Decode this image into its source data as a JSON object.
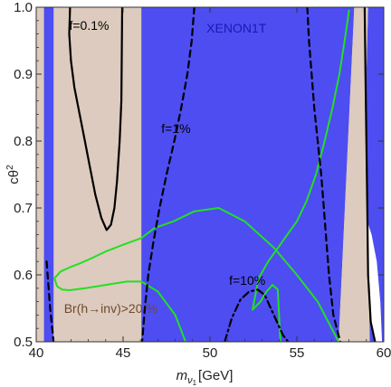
{
  "chart_data": {
    "type": "contour",
    "xlabel_main": "m",
    "xlabel_sub": "ν",
    "xlabel_subsub": "1",
    "xlabel_unit": "[GeV]",
    "ylabel_main": "cθ",
    "ylabel_sup": "2",
    "xlim": [
      40,
      60
    ],
    "ylim": [
      0.5,
      1.0
    ],
    "x_ticks": [
      40,
      45,
      50,
      55,
      60
    ],
    "x_tick_labels": [
      "40",
      "45",
      "50",
      "55",
      "60"
    ],
    "y_ticks": [
      0.5,
      0.6,
      0.7,
      0.8,
      0.9,
      1.0
    ],
    "y_tick_labels": [
      "0.5",
      "0.6",
      "0.7",
      "0.8",
      "0.9",
      "1.0"
    ],
    "colors": {
      "xenon": "#4d4df2",
      "br_region": "#dccbbe",
      "green": "#22e022",
      "contour": "#000000",
      "xenon_text": "#1a1ab3",
      "br_text": "#6e4a2e"
    },
    "annotations": [
      {
        "text": "f=0.1%",
        "x": 41.9,
        "y": 0.966,
        "color": "#000000"
      },
      {
        "text": "f=1%",
        "x": 47.2,
        "y": 0.812,
        "color": "#000000"
      },
      {
        "text": "f=10%",
        "x": 51.1,
        "y": 0.585,
        "color": "#000000"
      },
      {
        "text": "XENON1T",
        "x": 49.8,
        "y": 0.962,
        "color": "#1a1ab3"
      },
      {
        "text": "Br(h→inv)>20 %",
        "x": 41.6,
        "y": 0.543,
        "color": "#6e4a2e"
      }
    ],
    "regions": {
      "xenon": [
        [
          [
            40.45,
            0.5
          ],
          [
            40.45,
            1.0
          ],
          [
            41.0,
            1.0
          ],
          [
            41.0,
            0.5
          ]
        ],
        [
          [
            46.05,
            0.5
          ],
          [
            46.05,
            1.0
          ],
          [
            58.3,
            1.0
          ],
          [
            57.4,
            0.5
          ]
        ],
        [
          [
            59.1,
            1.0
          ],
          [
            60,
            1.0
          ],
          [
            60,
            0.5
          ],
          [
            59.2,
            0.5
          ],
          [
            59.05,
            0.7
          ],
          [
            59.0,
            0.9
          ]
        ]
      ],
      "br_region": [
        [
          [
            58.3,
            1.0
          ],
          [
            59.1,
            1.0
          ],
          [
            59.0,
            0.9
          ],
          [
            59.05,
            0.7
          ],
          [
            59.2,
            0.5
          ],
          [
            57.4,
            0.5
          ]
        ]
      ]
    },
    "series": [
      {
        "style": "solid",
        "color": "green",
        "x": [
          58.0,
          57.75,
          57.45,
          57.05,
          56.6,
          56.1,
          55.55,
          55.0,
          54.45,
          53.9,
          53.35,
          52.8,
          52.45,
          52.9,
          53.25,
          53.6,
          53.9,
          54.05
        ],
        "y": [
          0.995,
          0.95,
          0.9,
          0.85,
          0.8,
          0.75,
          0.71,
          0.68,
          0.66,
          0.64,
          0.62,
          0.595,
          0.548,
          0.56,
          0.575,
          0.585,
          0.578,
          0.5
        ]
      },
      {
        "style": "solid",
        "color": "green",
        "x": [
          57.4,
          56.2,
          55.0,
          53.7,
          52.0,
          50.5,
          49.1,
          47.9,
          46.8,
          46.05,
          45.0,
          44.0,
          43.2,
          42.5,
          42.0,
          41.4,
          41.05,
          41.2,
          41.5,
          41.9,
          42.8,
          44.0,
          45.2,
          46.05,
          47.0,
          48.0,
          48.6
        ],
        "y": [
          0.5,
          0.56,
          0.6,
          0.64,
          0.68,
          0.7,
          0.695,
          0.68,
          0.67,
          0.655,
          0.645,
          0.635,
          0.625,
          0.617,
          0.612,
          0.605,
          0.595,
          0.583,
          0.578,
          0.577,
          0.58,
          0.585,
          0.59,
          0.59,
          0.575,
          0.54,
          0.5
        ]
      },
      {
        "style": "solid",
        "color": "contour",
        "x": [
          41.95,
          41.9,
          42.0,
          42.2,
          42.5,
          42.8,
          43.1,
          43.4,
          43.75,
          44.05,
          44.3,
          44.5,
          44.65,
          44.8,
          44.9,
          44.95
        ],
        "y": [
          1.0,
          0.96,
          0.92,
          0.88,
          0.84,
          0.8,
          0.76,
          0.72,
          0.685,
          0.667,
          0.675,
          0.7,
          0.74,
          0.8,
          0.86,
          1.0
        ]
      },
      {
        "style": "solid",
        "color": "contour",
        "x": [
          58.9,
          58.95,
          59.0,
          59.05,
          59.1,
          59.25,
          59.5
        ],
        "y": [
          1.0,
          0.9,
          0.8,
          0.7,
          0.6,
          0.53,
          0.5
        ]
      },
      {
        "style": "dashed",
        "color": "contour",
        "x": [
          49.1,
          48.95,
          48.7,
          48.35,
          47.95,
          47.5,
          47.1,
          46.75,
          46.45,
          46.25,
          46.1
        ],
        "y": [
          1.0,
          0.95,
          0.9,
          0.85,
          0.8,
          0.75,
          0.7,
          0.65,
          0.6,
          0.55,
          0.5
        ]
      },
      {
        "style": "dashed",
        "color": "contour",
        "x": [
          55.6,
          55.7,
          55.85,
          56.0,
          56.2,
          56.4,
          56.55,
          56.7,
          56.85,
          57.1,
          57.5
        ],
        "y": [
          1.0,
          0.95,
          0.9,
          0.85,
          0.8,
          0.75,
          0.7,
          0.65,
          0.6,
          0.54,
          0.5
        ]
      },
      {
        "style": "dashed",
        "color": "contour",
        "x": [
          40.6,
          40.8,
          41.0
        ],
        "y": [
          0.62,
          0.55,
          0.5
        ]
      },
      {
        "style": "dashdot",
        "color": "contour",
        "x": [
          50.85,
          51.25,
          51.75,
          52.25,
          52.75,
          53.15,
          53.5,
          53.85,
          54.2,
          54.5
        ],
        "y": [
          0.5,
          0.535,
          0.563,
          0.575,
          0.578,
          0.57,
          0.55,
          0.53,
          0.51,
          0.5
        ]
      }
    ]
  }
}
